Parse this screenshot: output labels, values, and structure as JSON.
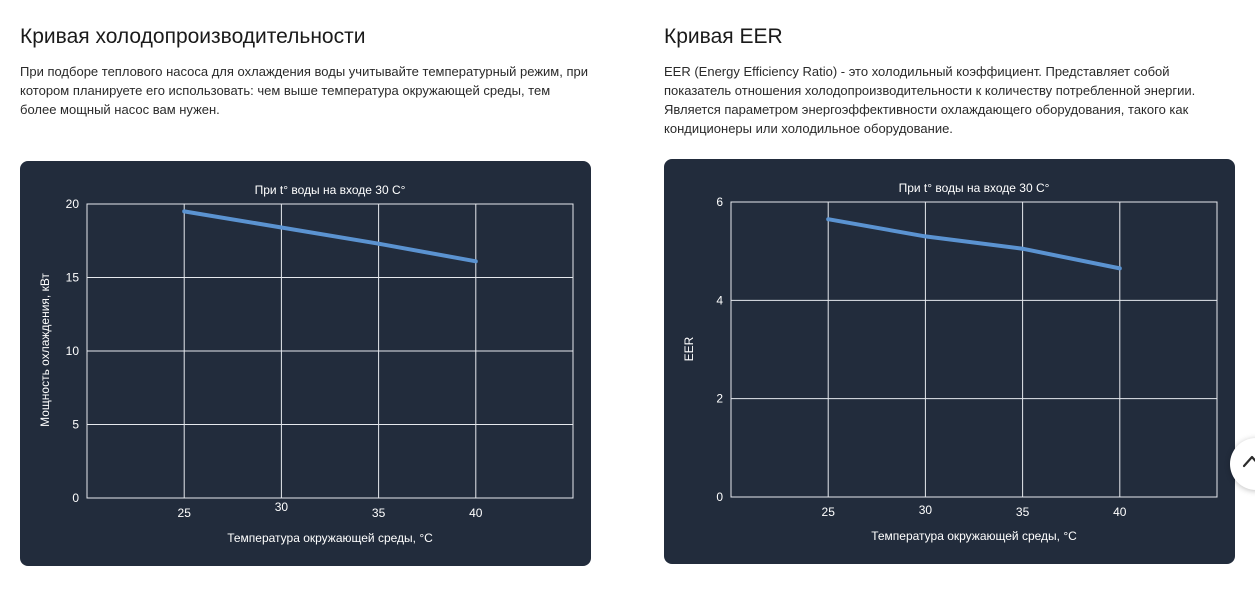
{
  "left": {
    "title": "Кривая холодопроизводительности",
    "description": "При подборе теплового насоса для охлаждения воды учитывайте температурный режим, при котором планируете его использовать: чем выше температура окружающей среды, тем более мощный насос вам нужен."
  },
  "right": {
    "title": "Кривая EER",
    "description": "EER (Energy Efficiency Ratio) - это холодильный коэффициент. Представляет собой показатель отношения холодопроизводительности к количеству потребленной энергии. Является параметром энергоэффективности охлаждающего оборудования, такого как кондиционеры или холодильное оборудование."
  },
  "chart_data": [
    {
      "type": "line",
      "title": "При t° воды на входе 30 С°",
      "xlabel": "Температура окружающей среды, °С",
      "ylabel": "Мощность охлаждения, кВт",
      "xlim": [
        20,
        45
      ],
      "ylim": [
        0,
        20
      ],
      "x_ticks": [
        "25",
        "30",
        "35",
        "40"
      ],
      "y_ticks": [
        "0",
        "5",
        "10",
        "15",
        "20"
      ],
      "grid": true,
      "series": [
        {
          "x": [
            25,
            30,
            35,
            40
          ],
          "values": [
            19.5,
            18.4,
            17.3,
            16.1
          ],
          "color": "#5b93d1"
        }
      ]
    },
    {
      "type": "line",
      "title": "При t° воды на входе 30 С°",
      "xlabel": "Температура окружающей среды, °С",
      "ylabel": "EER",
      "xlim": [
        20,
        45
      ],
      "ylim": [
        0,
        6
      ],
      "x_ticks": [
        "25",
        "30",
        "35",
        "40"
      ],
      "y_ticks": [
        "0",
        "2",
        "4",
        "6"
      ],
      "grid": true,
      "series": [
        {
          "x": [
            25,
            30,
            35,
            40
          ],
          "values": [
            5.65,
            5.3,
            5.05,
            4.65
          ],
          "color": "#5b93d1"
        }
      ]
    }
  ],
  "colors": {
    "panel_background": "#222c3c",
    "grid": "#e6e9ee",
    "line": "#5b93d1"
  },
  "icons": {
    "scroll_top": "chevron-up-icon"
  }
}
